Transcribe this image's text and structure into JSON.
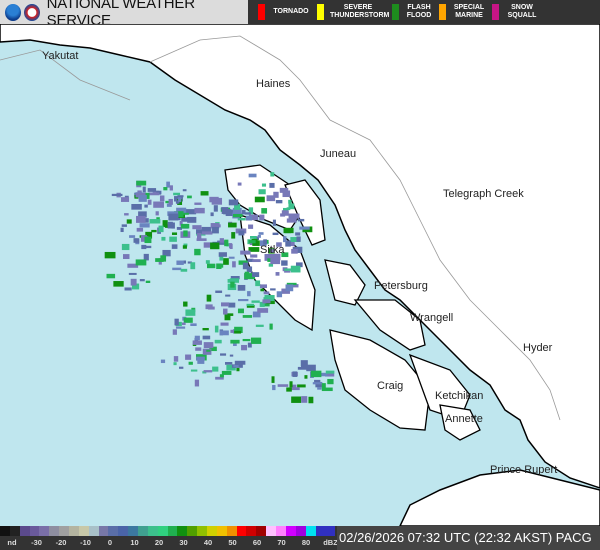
{
  "header": {
    "title": "NATIONAL WEATHER SERVICE",
    "warnings": [
      {
        "label": "TORNADO",
        "color": "#ff0000"
      },
      {
        "label": "SEVERE THUNDERSTORM",
        "color": "#ffff00"
      },
      {
        "label": "FLASH FLOOD",
        "color": "#1e8c1e"
      },
      {
        "label": "SPECIAL MARINE",
        "color": "#ffa500"
      },
      {
        "label": "SNOW SQUALL",
        "color": "#c71585"
      }
    ]
  },
  "map": {
    "colors": {
      "water": "#bfe6ee",
      "land": "#ffffff",
      "coast": "#000000",
      "border": "#999999"
    },
    "cities": [
      "Yakutat",
      "Haines",
      "Juneau",
      "Telegraph Creek",
      "Sitka",
      "Petersburg",
      "Wrangell",
      "Hyder",
      "Craig",
      "Ketchikan",
      "Annette",
      "Prince Rupert"
    ]
  },
  "legend": {
    "ticks": [
      "nd",
      "-30",
      "-20",
      "-10",
      "0",
      "10",
      "20",
      "30",
      "40",
      "50",
      "60",
      "70",
      "80",
      "dBZ"
    ],
    "colors": [
      "#111",
      "#222",
      "#5b4a8c",
      "#6a5a9c",
      "#7a6fa8",
      "#8e8ea0",
      "#a0a0a0",
      "#b4b4a0",
      "#c8c8a8",
      "#a8c0c8",
      "#7878a8",
      "#5a6ea8",
      "#4a64a8",
      "#3c78a0",
      "#40a090",
      "#3cc08c",
      "#30d080",
      "#20b050",
      "#109010",
      "#50a000",
      "#90c000",
      "#d0d000",
      "#f0c000",
      "#f09000",
      "#ff0000",
      "#d00000",
      "#a00000",
      "#ffc0ff",
      "#ff80ff",
      "#d000ff",
      "#a000e0",
      "#00e0f0",
      "#3030c0",
      "#3030c0"
    ]
  },
  "timestamp": "02/26/2026 07:32 UTC (22:32 AKST) PACG"
}
